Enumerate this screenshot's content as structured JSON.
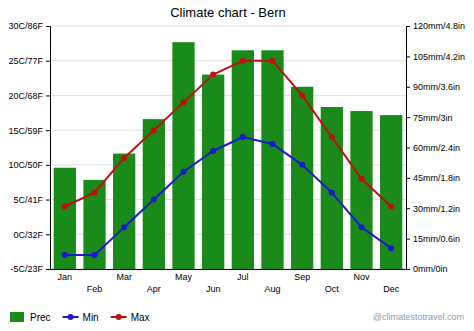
{
  "chart_data": {
    "type": "bar",
    "title": "Climate chart - Bern",
    "categories": [
      "Jan",
      "Feb",
      "Mar",
      "Apr",
      "May",
      "Jun",
      "Jul",
      "Aug",
      "Sep",
      "Oct",
      "Nov",
      "Dec"
    ],
    "series": [
      {
        "name": "Prec",
        "type": "bar",
        "axis": "y2",
        "color": "#1a8a1a",
        "values": [
          50,
          44,
          57,
          74,
          112,
          96,
          108,
          108,
          90,
          80,
          78,
          76
        ]
      },
      {
        "name": "Min",
        "type": "line",
        "marker": "circle",
        "color": "#1a1acc",
        "values": [
          -3,
          -3,
          1,
          5,
          9,
          12,
          14,
          13,
          10,
          6,
          1,
          -2
        ]
      },
      {
        "name": "Max",
        "type": "line",
        "marker": "circle",
        "color": "#bb1111",
        "values": [
          4,
          6,
          11,
          15,
          19,
          23,
          25,
          25,
          20,
          14,
          8,
          4
        ]
      }
    ],
    "ylim": [
      -5,
      30
    ],
    "yticks": [
      {
        "value": -5,
        "label": "-5C/23F"
      },
      {
        "value": 0,
        "label": "0C/32F"
      },
      {
        "value": 5,
        "label": "5C/41F"
      },
      {
        "value": 10,
        "label": "10C/50F"
      },
      {
        "value": 15,
        "label": "15C/59F"
      },
      {
        "value": 20,
        "label": "20C/68F"
      },
      {
        "value": 25,
        "label": "25C/77F"
      },
      {
        "value": 30,
        "label": "30C/86F"
      }
    ],
    "y2lim": [
      0,
      120
    ],
    "y2ticks": [
      {
        "value": 0,
        "label": "0mm/0in"
      },
      {
        "value": 15,
        "label": "15mm/0.6in"
      },
      {
        "value": 30,
        "label": "30mm/1.2in"
      },
      {
        "value": 45,
        "label": "45mm/1.8in"
      },
      {
        "value": 60,
        "label": "60mm/2.4in"
      },
      {
        "value": 75,
        "label": "75mm/3in"
      },
      {
        "value": 90,
        "label": "90mm/3.6in"
      },
      {
        "value": 105,
        "label": "105mm/4.2in"
      },
      {
        "value": 120,
        "label": "120mm/4.8in"
      }
    ],
    "grid": true,
    "legend": "lower left",
    "annotations": [
      "@climatestotravel.com"
    ]
  }
}
